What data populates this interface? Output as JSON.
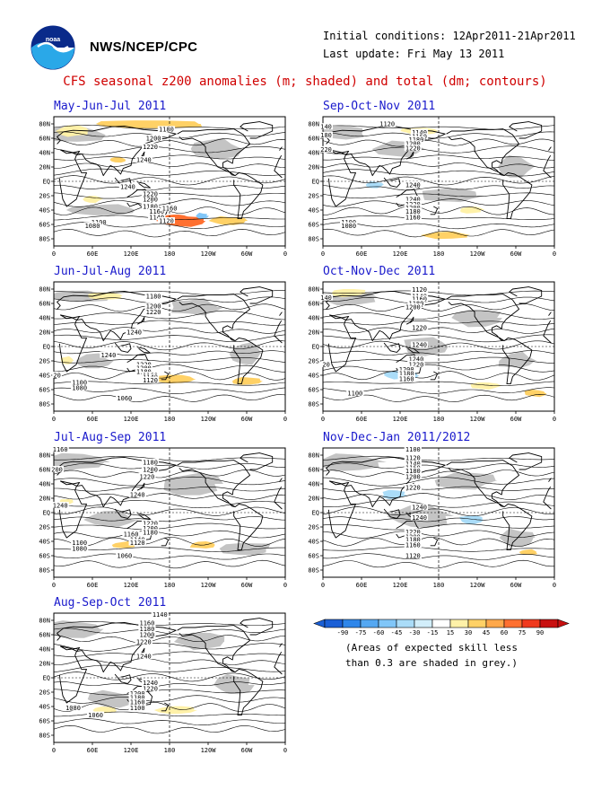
{
  "header": {
    "agency": "NWS/NCEP/CPC",
    "initial_conditions": "Initial conditions: 12Apr2011-21Apr2011",
    "last_update": "Last update: Fri May 13 2011",
    "title": "CFS seasonal z200 anomalies (m; shaded) and total (dm; contours)",
    "logo_icon": "noaa-logo-icon"
  },
  "map_axes": {
    "lat_labels": [
      "80N",
      "60N",
      "40N",
      "20N",
      "EQ",
      "20S",
      "40S",
      "60S",
      "80S"
    ],
    "lon_labels": [
      "0",
      "60E",
      "120E",
      "180",
      "120W",
      "60W",
      "0"
    ]
  },
  "panels": [
    {
      "id": "mjj",
      "title": "May-Jun-Jul 2011",
      "contours": [
        "1180",
        "1200",
        "1220",
        "1240",
        "1240",
        "1220",
        "1200",
        "1180",
        "1160",
        "1140",
        "1120",
        "1100",
        "1080",
        "1160",
        "1220"
      ]
    },
    {
      "id": "son",
      "title": "Sep-Oct-Nov 2011",
      "contours": [
        "1120",
        "1140",
        "1160",
        "1180",
        "1200",
        "1220",
        "1240",
        "1240",
        "1220",
        "1200",
        "1180",
        "1160",
        "1100",
        "1080",
        "140",
        "180",
        "220"
      ]
    },
    {
      "id": "jja",
      "title": "Jun-Jul-Aug 2011",
      "contours": [
        "1180",
        "1200",
        "1220",
        "1240",
        "1240",
        "1220",
        "1200",
        "1180",
        "1160",
        "1140",
        "1120",
        "1100",
        "1080",
        "1060",
        "20"
      ]
    },
    {
      "id": "ond",
      "title": "Oct-Nov-Dec 2011",
      "contours": [
        "1120",
        "1140",
        "1160",
        "1180",
        "1200",
        "1220",
        "1240",
        "1240",
        "1220",
        "1200",
        "1180",
        "1160",
        "1100",
        "140",
        "20"
      ]
    },
    {
      "id": "jas",
      "title": "Jul-Aug-Sep 2011",
      "contours": [
        "1160",
        "1180",
        "1200",
        "1220",
        "1240",
        "1240",
        "1220",
        "1200",
        "1180",
        "1160",
        "1140",
        "1120",
        "1100",
        "1080",
        "1060",
        "200"
      ]
    },
    {
      "id": "ndj",
      "title": "Nov-Dec-Jan 2011/2012",
      "contours": [
        "1100",
        "1120",
        "1140",
        "1160",
        "1180",
        "1200",
        "1220",
        "1240",
        "1240",
        "1220",
        "1200",
        "1180",
        "1160",
        "1120"
      ]
    },
    {
      "id": "aso",
      "title": "Aug-Sep-Oct 2011",
      "contours": [
        "1140",
        "1160",
        "1180",
        "1200",
        "1220",
        "1240",
        "1240",
        "1220",
        "1200",
        "1180",
        "1160",
        "1100",
        "1080",
        "1060"
      ]
    }
  ],
  "legend": {
    "tick_labels": [
      "-90",
      "-75",
      "-60",
      "-45",
      "-30",
      "-15",
      "15",
      "30",
      "45",
      "60",
      "75",
      "90"
    ],
    "colors": [
      "#1a5fd6",
      "#2e86ea",
      "#55a8f2",
      "#80c6f8",
      "#aadcf8",
      "#d2eefa",
      "#ffffff",
      "#fff1a8",
      "#ffd166",
      "#ffa84a",
      "#ff7030",
      "#f03a1e",
      "#c81010"
    ],
    "note_line1": "(Areas of expected skill less",
    "note_line2": "than 0.3 are shaded in grey.)"
  }
}
